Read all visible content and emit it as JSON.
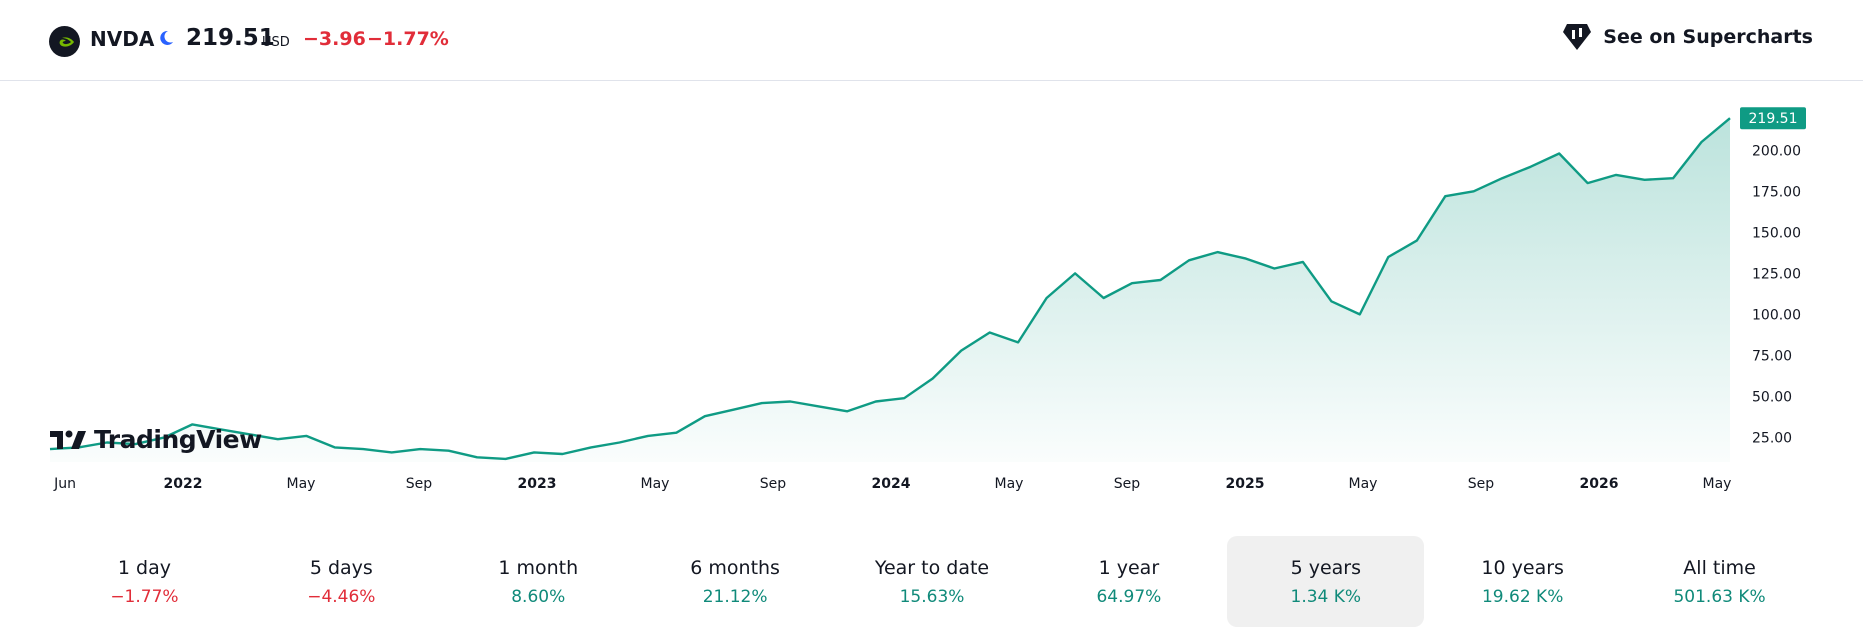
{
  "header": {
    "symbol": "NVDA",
    "price": "219.51",
    "currency": "USD",
    "change": "−3.96",
    "change_pct": "−1.77%",
    "supercharts_label": "See on Supercharts",
    "logo_icon": "nvidia-logo-icon",
    "session_icon": "moon-icon",
    "supercharts_icon": "supercharts-icon"
  },
  "branding": {
    "name": "TradingView"
  },
  "chart_data": {
    "type": "area",
    "title": "",
    "x_tick_labels": [
      "Jun",
      "2022",
      "May",
      "Sep",
      "2023",
      "May",
      "Sep",
      "2024",
      "May",
      "Sep",
      "2025",
      "May",
      "Sep",
      "2026",
      "May"
    ],
    "y_tick_labels": [
      "25.00",
      "50.00",
      "75.00",
      "100.00",
      "125.00",
      "150.00",
      "175.00",
      "200.00"
    ],
    "ylim": [
      15,
      230
    ],
    "last_price_label": "219.51",
    "line_color": "#0f9b84",
    "grid": false,
    "series": [
      {
        "x": [
          "2021-06",
          "2021-07",
          "2021-08",
          "2021-09",
          "2021-10",
          "2021-11",
          "2021-12",
          "2022-01",
          "2022-02",
          "2022-03",
          "2022-04",
          "2022-05",
          "2022-06",
          "2022-07",
          "2022-08",
          "2022-09",
          "2022-10",
          "2022-11",
          "2022-12",
          "2023-01",
          "2023-02",
          "2023-03",
          "2023-04",
          "2023-05",
          "2023-06",
          "2023-07",
          "2023-08",
          "2023-09",
          "2023-10",
          "2023-11",
          "2023-12",
          "2024-01",
          "2024-02",
          "2024-03",
          "2024-04",
          "2024-05",
          "2024-06",
          "2024-07",
          "2024-08",
          "2024-09",
          "2024-10",
          "2024-11",
          "2024-12",
          "2025-01",
          "2025-02",
          "2025-03",
          "2025-04",
          "2025-05",
          "2025-06",
          "2025-07",
          "2025-08",
          "2025-09",
          "2025-10",
          "2025-11",
          "2025-12",
          "2026-01",
          "2026-02",
          "2026-03",
          "2026-04",
          "2026-05"
        ],
        "values": [
          18,
          19,
          22,
          21,
          25,
          33,
          30,
          27,
          24,
          26,
          19,
          18,
          16,
          18,
          17,
          13,
          12,
          16,
          15,
          19,
          22,
          26,
          28,
          38,
          42,
          46,
          47,
          44,
          41,
          47,
          49,
          61,
          78,
          89,
          83,
          110,
          125,
          110,
          119,
          121,
          133,
          138,
          134,
          128,
          132,
          108,
          100,
          135,
          145,
          172,
          175,
          183,
          190,
          198,
          180,
          185,
          182,
          183,
          205,
          219.51
        ]
      }
    ]
  },
  "periods": [
    {
      "label": "1 day",
      "value": "−1.77%",
      "color": "#e12d39"
    },
    {
      "label": "5 days",
      "value": "−4.46%",
      "color": "#e12d39"
    },
    {
      "label": "1 month",
      "value": "8.60%",
      "color": "#108a7a"
    },
    {
      "label": "6 months",
      "value": "21.12%",
      "color": "#108a7a"
    },
    {
      "label": "Year to date",
      "value": "15.63%",
      "color": "#108a7a"
    },
    {
      "label": "1 year",
      "value": "64.97%",
      "color": "#108a7a"
    },
    {
      "label": "5 years",
      "value": "1.34 K%",
      "color": "#108a7a",
      "active": true
    },
    {
      "label": "10 years",
      "value": "19.62 K%",
      "color": "#108a7a"
    },
    {
      "label": "All time",
      "value": "501.63 K%",
      "color": "#108a7a"
    }
  ]
}
